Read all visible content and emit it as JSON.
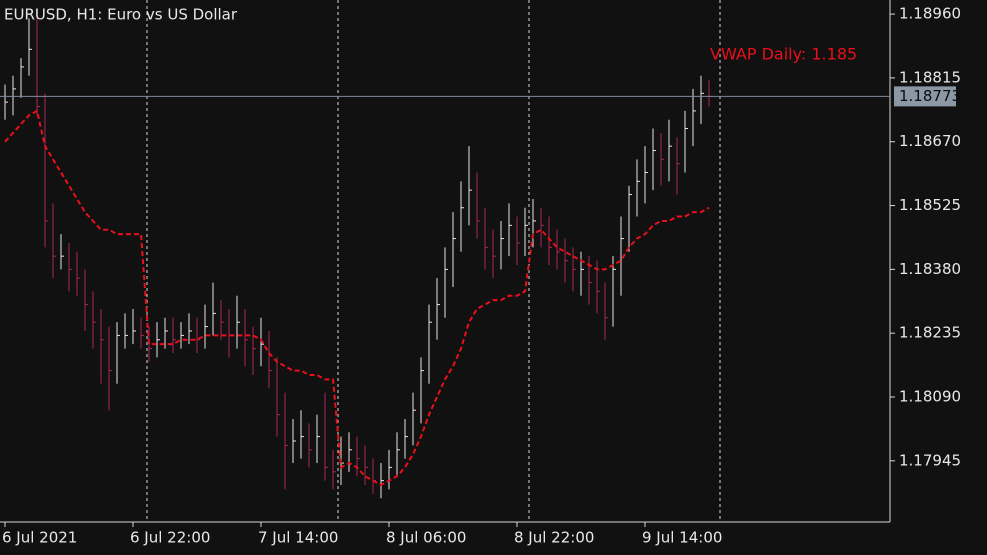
{
  "chart_data": {
    "type": "hlc",
    "title": "EURUSD, H1:  Euro vs US Dollar",
    "categories": [
      "6 Jul 2021",
      null,
      null,
      null,
      null,
      null,
      null,
      null,
      null,
      null,
      null,
      null,
      null,
      null,
      null,
      null,
      "6 Jul 22:00",
      null,
      null,
      null,
      null,
      null,
      null,
      null,
      null,
      null,
      null,
      null,
      null,
      null,
      null,
      null,
      "7 Jul 14:00",
      null,
      null,
      null,
      null,
      null,
      null,
      null,
      null,
      null,
      null,
      null,
      null,
      null,
      null,
      null,
      "8 Jul 06:00",
      null,
      null,
      null,
      null,
      null,
      null,
      null,
      null,
      null,
      null,
      null,
      null,
      null,
      null,
      null,
      "8 Jul 22:00",
      null,
      null,
      null,
      null,
      null,
      null,
      null,
      null,
      null,
      null,
      null,
      null,
      null,
      null,
      null,
      "9 Jul 14:00",
      null,
      null,
      null,
      null,
      null,
      null,
      null,
      null
    ],
    "high": [
      1.188,
      1.1882,
      1.1886,
      1.1895,
      1.1896,
      1.1878,
      1.1853,
      1.1846,
      1.1844,
      1.1842,
      1.1838,
      1.1833,
      1.1829,
      1.1825,
      1.1826,
      1.1828,
      1.1829,
      1.1827,
      1.1825,
      1.1826,
      1.1827,
      1.1827,
      1.1826,
      1.1828,
      1.1827,
      1.183,
      1.1835,
      1.1831,
      1.1829,
      1.1832,
      1.1829,
      1.1825,
      1.1827,
      1.1824,
      1.1818,
      1.181,
      1.1804,
      1.1806,
      1.1803,
      1.1805,
      1.181,
      1.1797,
      1.18,
      1.1801,
      1.18,
      1.1798,
      1.1795,
      1.1794,
      1.1797,
      1.1801,
      1.1804,
      1.181,
      1.1818,
      1.183,
      1.1836,
      1.1843,
      1.1851,
      1.1858,
      1.1866,
      1.186,
      1.1852,
      1.1847,
      1.1849,
      1.1853,
      1.185,
      1.1852,
      1.1854,
      1.1852,
      1.185,
      1.1847,
      1.1845,
      1.1843,
      1.1842,
      1.1841,
      1.184,
      1.1835,
      1.1841,
      1.185,
      1.1857,
      1.1863,
      1.1866,
      1.187,
      1.1869,
      1.1872,
      1.1868,
      1.1874,
      1.1879,
      1.1882,
      1.1881
    ],
    "low": [
      1.1872,
      1.1873,
      1.1877,
      1.1882,
      1.1873,
      1.1843,
      1.1836,
      1.1838,
      1.1833,
      1.1832,
      1.1824,
      1.182,
      1.1812,
      1.1806,
      1.1812,
      1.182,
      1.1821,
      1.182,
      1.1817,
      1.1818,
      1.182,
      1.1819,
      1.182,
      1.1821,
      1.1819,
      1.182,
      1.1823,
      1.1822,
      1.1818,
      1.182,
      1.1816,
      1.1814,
      1.1816,
      1.1811,
      1.18,
      1.1788,
      1.1794,
      1.1795,
      1.1793,
      1.1794,
      1.179,
      1.1788,
      1.1789,
      1.1792,
      1.1791,
      1.1789,
      1.1787,
      1.1786,
      1.1788,
      1.1791,
      1.1795,
      1.1798,
      1.1803,
      1.1812,
      1.1822,
      1.1827,
      1.1834,
      1.1842,
      1.1848,
      1.1845,
      1.1838,
      1.1836,
      1.1838,
      1.1841,
      1.1839,
      1.1841,
      1.1843,
      1.1843,
      1.1839,
      1.1838,
      1.1835,
      1.1833,
      1.1832,
      1.183,
      1.1828,
      1.1822,
      1.1825,
      1.1832,
      1.1842,
      1.185,
      1.1853,
      1.1856,
      1.1857,
      1.1858,
      1.1855,
      1.186,
      1.1866,
      1.1871,
      1.1875
    ],
    "close": [
      1.1876,
      1.1879,
      1.1884,
      1.1888,
      1.1875,
      1.1849,
      1.1841,
      1.1841,
      1.1838,
      1.1836,
      1.183,
      1.1826,
      1.1822,
      1.1815,
      1.1823,
      1.1823,
      1.1824,
      1.1823,
      1.182,
      1.1822,
      1.1824,
      1.1822,
      1.1823,
      1.1824,
      1.1822,
      1.1825,
      1.1828,
      1.1826,
      1.1823,
      1.1826,
      1.1822,
      1.182,
      1.1821,
      1.1815,
      1.1805,
      1.1798,
      1.1799,
      1.18,
      1.1797,
      1.18,
      1.1793,
      1.1792,
      1.1794,
      1.1797,
      1.1795,
      1.1793,
      1.179,
      1.179,
      1.1793,
      1.1797,
      1.18,
      1.1806,
      1.1815,
      1.1826,
      1.183,
      1.1838,
      1.1845,
      1.1852,
      1.1856,
      1.1849,
      1.1843,
      1.1841,
      1.1845,
      1.1848,
      1.1844,
      1.1848,
      1.1849,
      1.1848,
      1.1843,
      1.1842,
      1.184,
      1.1838,
      1.1838,
      1.1835,
      1.1833,
      1.1827,
      1.1838,
      1.1845,
      1.1855,
      1.1858,
      1.186,
      1.1865,
      1.1863,
      1.1866,
      1.1862,
      1.187,
      1.1874,
      1.1878,
      1.18773
    ],
    "up_color": "#ece4e8",
    "down_color": "#a8285a",
    "overlay": {
      "color": "#e8101a",
      "dashed": true,
      "values": [
        1.1867,
        1.1869,
        1.1871,
        1.1873,
        1.1874,
        1.1866,
        1.1863,
        1.186,
        1.1857,
        1.1854,
        1.1851,
        1.1849,
        1.1847,
        1.1847,
        1.1846,
        1.1846,
        1.1846,
        1.1846,
        1.1821,
        1.1821,
        1.1821,
        1.1821,
        1.1822,
        1.1822,
        1.1822,
        1.1823,
        1.1823,
        1.1823,
        1.1823,
        1.1823,
        1.1823,
        1.1823,
        1.1822,
        1.1819,
        1.1817,
        1.1816,
        1.1815,
        1.1815,
        1.1814,
        1.1814,
        1.1813,
        1.1813,
        1.1793,
        1.1794,
        1.1793,
        1.1791,
        1.179,
        1.1789,
        1.179,
        1.1791,
        1.1793,
        1.1796,
        1.18,
        1.1805,
        1.1809,
        1.1813,
        1.1816,
        1.182,
        1.1826,
        1.1829,
        1.183,
        1.1831,
        1.1831,
        1.1832,
        1.1832,
        1.1833,
        1.1846,
        1.1847,
        1.1845,
        1.1843,
        1.1842,
        1.1841,
        1.184,
        1.1839,
        1.1838,
        1.1838,
        1.1839,
        1.184,
        1.1843,
        1.1845,
        1.1846,
        1.1848,
        1.1849,
        1.1849,
        1.185,
        1.185,
        1.1851,
        1.1851,
        1.1852
      ]
    },
    "annotation": "VWAP Daily: 1.185",
    "last_price": 1.18773,
    "ylim": [
      1.17806,
      1.18992
    ],
    "yticks": [
      {
        "value": 1.1896,
        "label": "1.18960"
      },
      1.18815,
      {
        "value": 1.1867,
        "label": "1.18670"
      },
      1.18525,
      {
        "value": 1.1838,
        "label": "1.18380"
      },
      1.18235,
      {
        "value": 1.1809,
        "label": "1.18090"
      },
      1.17945
    ]
  }
}
